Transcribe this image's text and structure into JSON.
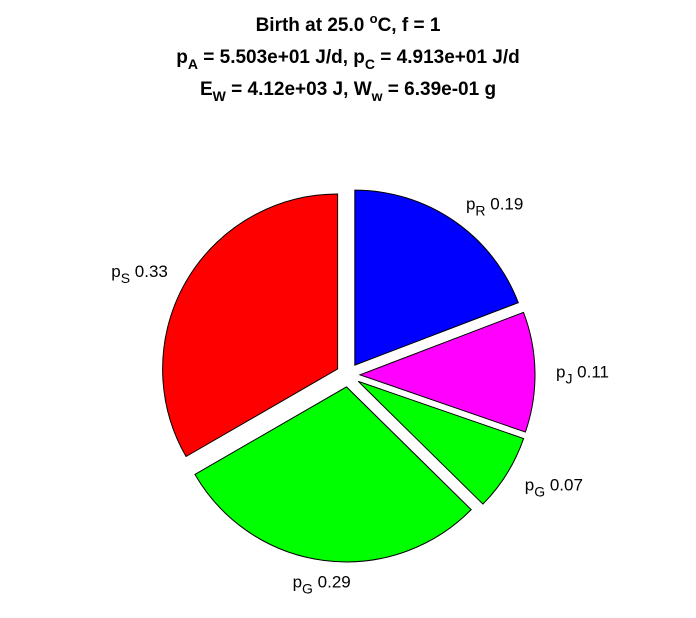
{
  "title": {
    "line1": {
      "text_a": "Birth at 25.0 ",
      "sup": "o",
      "text_b": "C, f = 1"
    },
    "line2": {
      "p1": "p",
      "p1_sub": "A",
      "p1_val": " = 5.503e+01 J/d, ",
      "p2": "p",
      "p2_sub": "C",
      "p2_val": " = 4.913e+01 J/d"
    },
    "line3": {
      "e": "E",
      "e_sub": "W",
      "e_val": " = 4.12e+03 J, ",
      "w": "W",
      "w_sub": "w",
      "w_val": " = 6.39e-01 g"
    }
  },
  "chart_data": {
    "type": "pie",
    "slices": [
      {
        "sym": "p",
        "sub": "R",
        "value": 0.19,
        "label": "0.19",
        "color": "#0000ff"
      },
      {
        "sym": "p",
        "sub": "J",
        "value": 0.11,
        "label": "0.11",
        "color": "#ff00ff"
      },
      {
        "sym": "p",
        "sub": "G",
        "value": 0.07,
        "label": "0.07",
        "color": "#00ff00"
      },
      {
        "sym": "p",
        "sub": "G",
        "value": 0.29,
        "label": "0.29",
        "color": "#00ff00"
      },
      {
        "sym": "p",
        "sub": "S",
        "value": 0.33,
        "label": "0.33",
        "color": "#ff0000"
      }
    ]
  }
}
